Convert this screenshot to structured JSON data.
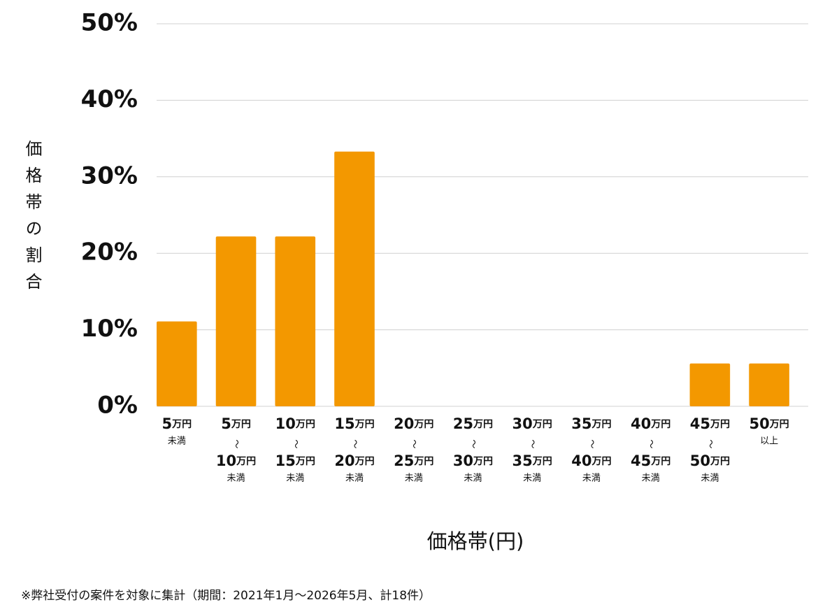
{
  "chart_data": {
    "type": "bar",
    "y_axis_label": "価格帯の割合",
    "x_axis_label": "価格帯(円)",
    "footnote": "※弊社受付の案件を対象に集計（期間：2021年1月〜2026年5月、計18件）",
    "categories": [
      [
        "5万円",
        "未満"
      ],
      [
        "5万円",
        "〜",
        "10万円",
        "未満"
      ],
      [
        "10万円",
        "〜",
        "15万円",
        "未満"
      ],
      [
        "15万円",
        "〜",
        "20万円",
        "未満"
      ],
      [
        "20万円",
        "〜",
        "25万円",
        "未満"
      ],
      [
        "25万円",
        "〜",
        "30万円",
        "未満"
      ],
      [
        "30万円",
        "〜",
        "35万円",
        "未満"
      ],
      [
        "35万円",
        "〜",
        "40万円",
        "未満"
      ],
      [
        "40万円",
        "〜",
        "45万円",
        "未満"
      ],
      [
        "45万円",
        "〜",
        "50万円",
        "未満"
      ],
      [
        "50万円",
        "以上"
      ]
    ],
    "values": [
      11.1,
      22.2,
      22.2,
      33.3,
      0,
      0,
      0,
      0,
      0,
      5.6,
      5.6
    ],
    "color": "#f39800",
    "ylim": [
      0,
      50
    ],
    "yticks": [
      {
        "value": 0,
        "label": "0%"
      },
      {
        "value": 10,
        "label": "10%"
      },
      {
        "value": 20,
        "label": "20%"
      },
      {
        "value": 30,
        "label": "30%"
      },
      {
        "value": 40,
        "label": "40%"
      },
      {
        "value": 50,
        "label": "50%"
      }
    ],
    "grid": true
  }
}
